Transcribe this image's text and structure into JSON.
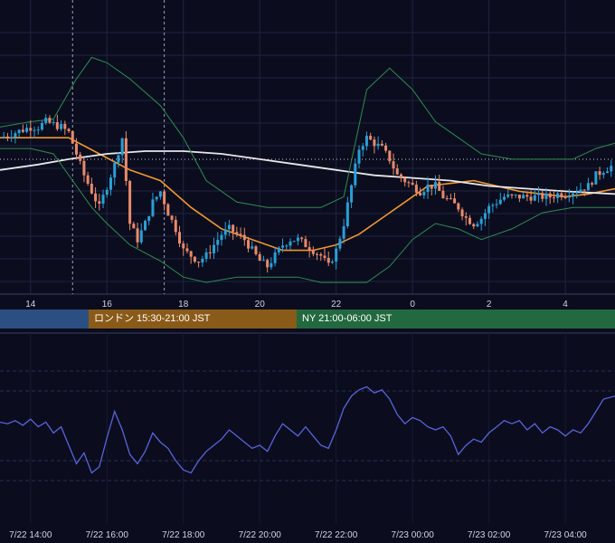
{
  "colors": {
    "background": "#0b0d1f",
    "grid": "#1f2440",
    "axis_text": "#d0d4e0",
    "candle_up": "#2a9fd6",
    "candle_down": "#e98a6a",
    "bollinger": "#2f8c4e",
    "ma_short": "#f0962e",
    "ma_long": "#e8e8e8",
    "oscillator": "#5a63d8",
    "session_tokyo": "#2b4f82",
    "session_london": "#8a5a18",
    "session_ny": "#22693f"
  },
  "sessions": [
    {
      "label": "",
      "color": "#2b4f82"
    },
    {
      "label": "ロンドン 15:30-21:00 JST",
      "color": "#8a5a18"
    },
    {
      "label": "NY 21:00-06:00 JST",
      "color": "#22693f"
    }
  ],
  "chart_data": [
    {
      "type": "candlestick",
      "x_tick_labels": [
        "14",
        "16",
        "18",
        "20",
        "22",
        "0",
        "2",
        "4"
      ],
      "x_tick_hours": [
        14,
        16,
        18,
        20,
        22,
        24,
        26,
        28
      ],
      "x_range_hours": [
        13.2,
        29.3
      ],
      "y_range": [
        0,
        100
      ],
      "grid": true,
      "session_markers_hours": [
        15.1,
        17.5
      ],
      "series": [
        {
          "role": "price",
          "kind": "candlestick",
          "close_path": [
            [
              13.2,
              56
            ],
            [
              13.4,
              57
            ],
            [
              13.6,
              58
            ],
            [
              13.8,
              59
            ],
            [
              14.0,
              60
            ],
            [
              14.2,
              60
            ],
            [
              14.4,
              62
            ],
            [
              14.6,
              61
            ],
            [
              14.8,
              60
            ],
            [
              15.0,
              58
            ],
            [
              15.2,
              50
            ],
            [
              15.4,
              42
            ],
            [
              15.6,
              36
            ],
            [
              15.8,
              30
            ],
            [
              16.0,
              38
            ],
            [
              16.2,
              46
            ],
            [
              16.4,
              56
            ],
            [
              16.6,
              24
            ],
            [
              16.8,
              18
            ],
            [
              17.0,
              24
            ],
            [
              17.2,
              32
            ],
            [
              17.4,
              36
            ],
            [
              17.6,
              28
            ],
            [
              17.8,
              22
            ],
            [
              18.0,
              14
            ],
            [
              18.2,
              12
            ],
            [
              18.4,
              10
            ],
            [
              18.6,
              12
            ],
            [
              18.8,
              16
            ],
            [
              19.0,
              20
            ],
            [
              19.2,
              22
            ],
            [
              19.4,
              20
            ],
            [
              19.6,
              18
            ],
            [
              19.8,
              14
            ],
            [
              20.0,
              10
            ],
            [
              20.2,
              8
            ],
            [
              20.4,
              12
            ],
            [
              20.6,
              16
            ],
            [
              20.8,
              18
            ],
            [
              21.0,
              18
            ],
            [
              21.2,
              16
            ],
            [
              21.4,
              14
            ],
            [
              21.6,
              12
            ],
            [
              21.8,
              8
            ],
            [
              22.0,
              14
            ],
            [
              22.2,
              24
            ],
            [
              22.4,
              38
            ],
            [
              22.6,
              52
            ],
            [
              22.8,
              56
            ],
            [
              23.0,
              54
            ],
            [
              23.2,
              52
            ],
            [
              23.4,
              48
            ],
            [
              23.6,
              42
            ],
            [
              23.8,
              40
            ],
            [
              24.0,
              38
            ],
            [
              24.2,
              36
            ],
            [
              24.4,
              38
            ],
            [
              24.6,
              38
            ],
            [
              24.8,
              34
            ],
            [
              25.0,
              32
            ],
            [
              25.2,
              30
            ],
            [
              25.4,
              26
            ],
            [
              25.6,
              24
            ],
            [
              25.8,
              26
            ],
            [
              26.0,
              30
            ],
            [
              26.2,
              32
            ],
            [
              26.4,
              34
            ],
            [
              26.6,
              34
            ],
            [
              26.8,
              34
            ],
            [
              27.0,
              34
            ],
            [
              27.2,
              34
            ],
            [
              27.4,
              34
            ],
            [
              27.6,
              34
            ],
            [
              27.8,
              35
            ],
            [
              28.0,
              35
            ],
            [
              28.2,
              36
            ],
            [
              28.4,
              37
            ],
            [
              28.6,
              38
            ],
            [
              28.8,
              42
            ],
            [
              29.0,
              44
            ],
            [
              29.3,
              46
            ]
          ]
        },
        {
          "role": "moving-average-short",
          "kind": "line",
          "points": [
            [
              13.2,
              56
            ],
            [
              14.0,
              56
            ],
            [
              15.0,
              56
            ],
            [
              15.8,
              50
            ],
            [
              16.6,
              44
            ],
            [
              17.4,
              40
            ],
            [
              18.2,
              30
            ],
            [
              19.0,
              22
            ],
            [
              19.8,
              18
            ],
            [
              20.6,
              14
            ],
            [
              21.4,
              14
            ],
            [
              22.0,
              16
            ],
            [
              22.6,
              20
            ],
            [
              23.2,
              26
            ],
            [
              23.8,
              32
            ],
            [
              24.4,
              38
            ],
            [
              25.0,
              39
            ],
            [
              25.6,
              40
            ],
            [
              26.2,
              38
            ],
            [
              26.8,
              36
            ],
            [
              27.4,
              35
            ],
            [
              28.0,
              34
            ],
            [
              28.6,
              35
            ],
            [
              29.3,
              37
            ]
          ]
        },
        {
          "role": "moving-average-long",
          "kind": "line",
          "points": [
            [
              13.2,
              44
            ],
            [
              14.2,
              46
            ],
            [
              15.0,
              48
            ],
            [
              16.0,
              50
            ],
            [
              17.0,
              51
            ],
            [
              18.0,
              51
            ],
            [
              19.0,
              50
            ],
            [
              20.0,
              48
            ],
            [
              21.0,
              46
            ],
            [
              22.0,
              44
            ],
            [
              23.0,
              42
            ],
            [
              24.0,
              41
            ],
            [
              25.0,
              40
            ],
            [
              26.0,
              38
            ],
            [
              27.0,
              37
            ],
            [
              28.0,
              36
            ],
            [
              29.3,
              35
            ]
          ]
        },
        {
          "role": "bollinger-upper",
          "kind": "line",
          "points": [
            [
              13.2,
              60
            ],
            [
              14.0,
              62
            ],
            [
              14.6,
              63
            ],
            [
              15.2,
              78
            ],
            [
              15.6,
              86
            ],
            [
              16.0,
              84
            ],
            [
              16.6,
              78
            ],
            [
              17.4,
              68
            ],
            [
              18.0,
              56
            ],
            [
              18.6,
              40
            ],
            [
              19.4,
              32
            ],
            [
              20.2,
              30
            ],
            [
              21.0,
              30
            ],
            [
              21.6,
              30
            ],
            [
              22.2,
              34
            ],
            [
              22.8,
              74
            ],
            [
              23.4,
              82
            ],
            [
              24.0,
              74
            ],
            [
              24.6,
              62
            ],
            [
              25.2,
              56
            ],
            [
              25.8,
              50
            ],
            [
              26.6,
              48
            ],
            [
              27.4,
              48
            ],
            [
              28.2,
              48
            ],
            [
              28.8,
              52
            ],
            [
              29.3,
              54
            ]
          ]
        },
        {
          "role": "bollinger-lower",
          "kind": "line",
          "points": [
            [
              13.2,
              52
            ],
            [
              14.0,
              52
            ],
            [
              14.6,
              50
            ],
            [
              15.2,
              38
            ],
            [
              15.6,
              30
            ],
            [
              16.0,
              24
            ],
            [
              16.6,
              16
            ],
            [
              17.4,
              10
            ],
            [
              18.0,
              4
            ],
            [
              18.6,
              2
            ],
            [
              19.4,
              4
            ],
            [
              20.2,
              4
            ],
            [
              21.0,
              4
            ],
            [
              21.6,
              2
            ],
            [
              22.2,
              2
            ],
            [
              22.8,
              2
            ],
            [
              23.4,
              8
            ],
            [
              24.0,
              18
            ],
            [
              24.6,
              24
            ],
            [
              25.2,
              22
            ],
            [
              25.8,
              18
            ],
            [
              26.6,
              22
            ],
            [
              27.4,
              28
            ],
            [
              28.2,
              30
            ],
            [
              28.8,
              30
            ],
            [
              29.3,
              30
            ]
          ]
        }
      ]
    },
    {
      "type": "line",
      "x_tick_labels": [
        "7/22 14:00",
        "7/22 16:00",
        "7/22 18:00",
        "7/22 20:00",
        "7/22 22:00",
        "7/23 00:00",
        "7/23 02:00",
        "7/23 04:00"
      ],
      "x_tick_hours": [
        14,
        16,
        18,
        20,
        22,
        24,
        26,
        28
      ],
      "x_range_hours": [
        13.2,
        29.3
      ],
      "y_range": [
        0,
        100
      ],
      "grid": true,
      "series": [
        {
          "role": "oscillator",
          "values": [
            [
              13.2,
              55
            ],
            [
              13.4,
              54
            ],
            [
              13.6,
              56
            ],
            [
              13.8,
              53
            ],
            [
              14.0,
              57
            ],
            [
              14.2,
              52
            ],
            [
              14.4,
              55
            ],
            [
              14.6,
              48
            ],
            [
              14.8,
              52
            ],
            [
              15.0,
              40
            ],
            [
              15.2,
              28
            ],
            [
              15.4,
              35
            ],
            [
              15.6,
              22
            ],
            [
              15.8,
              26
            ],
            [
              16.0,
              45
            ],
            [
              16.2,
              62
            ],
            [
              16.4,
              50
            ],
            [
              16.6,
              34
            ],
            [
              16.8,
              28
            ],
            [
              17.0,
              36
            ],
            [
              17.2,
              48
            ],
            [
              17.4,
              42
            ],
            [
              17.6,
              38
            ],
            [
              17.8,
              30
            ],
            [
              18.0,
              24
            ],
            [
              18.2,
              22
            ],
            [
              18.4,
              30
            ],
            [
              18.6,
              36
            ],
            [
              18.8,
              40
            ],
            [
              19.0,
              44
            ],
            [
              19.2,
              50
            ],
            [
              19.4,
              46
            ],
            [
              19.6,
              42
            ],
            [
              19.8,
              38
            ],
            [
              20.0,
              40
            ],
            [
              20.2,
              36
            ],
            [
              20.4,
              46
            ],
            [
              20.6,
              54
            ],
            [
              20.8,
              50
            ],
            [
              21.0,
              46
            ],
            [
              21.2,
              52
            ],
            [
              21.4,
              46
            ],
            [
              21.6,
              40
            ],
            [
              21.8,
              38
            ],
            [
              22.0,
              50
            ],
            [
              22.2,
              64
            ],
            [
              22.4,
              72
            ],
            [
              22.6,
              76
            ],
            [
              22.8,
              78
            ],
            [
              23.0,
              74
            ],
            [
              23.2,
              76
            ],
            [
              23.4,
              70
            ],
            [
              23.6,
              60
            ],
            [
              23.8,
              54
            ],
            [
              24.0,
              58
            ],
            [
              24.2,
              56
            ],
            [
              24.4,
              52
            ],
            [
              24.6,
              50
            ],
            [
              24.8,
              52
            ],
            [
              25.0,
              46
            ],
            [
              25.2,
              34
            ],
            [
              25.4,
              40
            ],
            [
              25.6,
              44
            ],
            [
              25.8,
              42
            ],
            [
              26.0,
              48
            ],
            [
              26.2,
              52
            ],
            [
              26.4,
              56
            ],
            [
              26.6,
              54
            ],
            [
              26.8,
              56
            ],
            [
              27.0,
              50
            ],
            [
              27.2,
              54
            ],
            [
              27.4,
              48
            ],
            [
              27.6,
              52
            ],
            [
              27.8,
              50
            ],
            [
              28.0,
              46
            ],
            [
              28.2,
              50
            ],
            [
              28.4,
              48
            ],
            [
              28.6,
              54
            ],
            [
              28.8,
              62
            ],
            [
              29.0,
              70
            ],
            [
              29.3,
              72
            ]
          ]
        }
      ]
    }
  ]
}
